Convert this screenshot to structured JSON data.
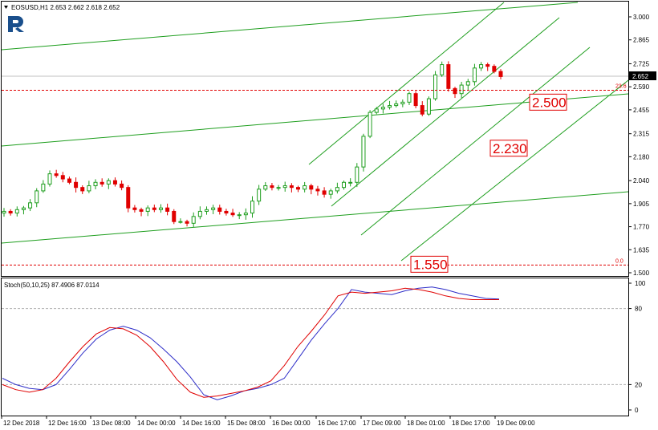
{
  "main_header": {
    "symbol_line": "EOSUSD,H1  2.653 2.662 2.618 2.652"
  },
  "stoch_header": {
    "text": "Stoch(50,10,25) 87.4906 87.0114"
  },
  "colors": {
    "bull": "#1e9e1e",
    "bear": "#e00000",
    "trend": "#1e9e1e",
    "stoch_main": "#2d2dc8",
    "stoch_signal": "#e00000",
    "level": "#e00000",
    "logo": "#1a4f8c"
  },
  "chart_data": [
    {
      "type": "candlestick",
      "symbol": "EOSUSD",
      "timeframe": "H1",
      "ohlc_last": {
        "open": 2.653,
        "high": 2.662,
        "low": 2.618,
        "close": 2.652
      },
      "current_price": "2.652",
      "y_ticks": [
        "3.000",
        "2.865",
        "2.725",
        "2.590",
        "2.455",
        "2.315",
        "2.180",
        "2.040",
        "1.905",
        "1.770",
        "1.635",
        "1.500"
      ],
      "ylim": [
        1.495,
        3.04
      ],
      "x_ticks": [
        "12 Dec 2018",
        "12 Dec 16:00",
        "13 Dec 08:00",
        "14 Dec 00:00",
        "14 Dec 16:00",
        "15 Dec 08:00",
        "16 Dec 00:00",
        "16 Dec 17:00",
        "17 Dec 09:00",
        "18 Dec 01:00",
        "18 Dec 17:00",
        "19 Dec 09:00"
      ],
      "close_path": [
        1.86,
        1.85,
        1.87,
        1.88,
        1.91,
        1.98,
        2.02,
        2.08,
        2.07,
        2.05,
        2.03,
        2.0,
        1.98,
        2.01,
        2.03,
        2.02,
        2.04,
        2.02,
        2.0,
        1.88,
        1.87,
        1.86,
        1.88,
        1.87,
        1.88,
        1.86,
        1.8,
        1.8,
        1.79,
        1.83,
        1.86,
        1.87,
        1.88,
        1.86,
        1.85,
        1.84,
        1.84,
        1.85,
        1.92,
        1.99,
        2.01,
        2.0,
        2.0,
        2.01,
        2.0,
        1.99,
        2.01,
        1.99,
        1.98,
        1.96,
        1.98,
        2.0,
        2.03,
        2.03,
        2.12,
        2.3,
        2.44,
        2.46,
        2.47,
        2.48,
        2.49,
        2.5,
        2.55,
        2.48,
        2.43,
        2.52,
        2.66,
        2.72,
        2.58,
        2.55,
        2.6,
        2.62,
        2.7,
        2.72,
        2.71,
        2.68,
        2.65
      ],
      "levels": [
        {
          "label": "23.6",
          "value": 2.57
        },
        {
          "label": "0.0",
          "value": 1.545
        }
      ],
      "annotations": [
        {
          "text": "2.500",
          "value": 2.5
        },
        {
          "text": "2.230",
          "value": 2.23
        },
        {
          "text": "1.550",
          "value": 1.55
        }
      ]
    },
    {
      "type": "line",
      "name": "Stoch(50,10,25)",
      "values_text": [
        "87.4906",
        "87.0114"
      ],
      "ylim": [
        0,
        100
      ],
      "y_ticks": [
        "100",
        "80",
        "20",
        "0"
      ],
      "levels": [
        80,
        20
      ],
      "series": [
        {
          "name": "main",
          "values": [
            25,
            20,
            17,
            16,
            20,
            32,
            45,
            56,
            63,
            66,
            63,
            57,
            48,
            38,
            26,
            12,
            8,
            11,
            15,
            17,
            20,
            25,
            40,
            55,
            68,
            80,
            95,
            93,
            92,
            91,
            94,
            96,
            97,
            95,
            92,
            90,
            88,
            87.5
          ]
        },
        {
          "name": "signal",
          "values": [
            20,
            16,
            14,
            16,
            25,
            38,
            50,
            60,
            65,
            64,
            59,
            50,
            38,
            24,
            14,
            10,
            11,
            13,
            15,
            18,
            23,
            35,
            50,
            62,
            75,
            90,
            93,
            92,
            93,
            94,
            96,
            95,
            93,
            90,
            88,
            87,
            87,
            87
          ]
        }
      ]
    }
  ]
}
